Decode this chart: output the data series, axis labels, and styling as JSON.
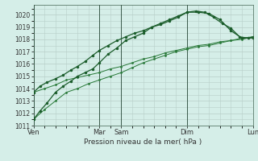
{
  "xlabel": "Pression niveau de la mer( hPa )",
  "ylim": [
    1011,
    1020.8
  ],
  "yticks": [
    1011,
    1012,
    1013,
    1014,
    1015,
    1016,
    1017,
    1018,
    1019,
    1020
  ],
  "bg_color": "#d5eee8",
  "plot_bg_color": "#d5eee8",
  "grid_color": "#b8cec8",
  "line_color_dark": "#1a5c2a",
  "line_color_med": "#2a7a3a",
  "xtick_labels": [
    "Ven",
    "Mar",
    "Sam",
    "Dim",
    "Lun"
  ],
  "xtick_positions": [
    0.0,
    3.0,
    4.0,
    7.0,
    10.0
  ],
  "vline_positions": [
    0.0,
    3.0,
    4.0,
    7.0,
    10.0
  ],
  "series1_x": [
    0.0,
    0.3,
    0.6,
    1.0,
    1.35,
    1.7,
    2.0,
    2.35,
    2.7,
    3.0,
    3.4,
    3.8,
    4.2,
    4.6,
    5.0,
    5.4,
    5.8,
    6.2,
    6.6,
    7.0,
    7.4,
    7.8,
    8.2,
    8.6,
    9.0,
    9.4,
    9.8,
    10.0
  ],
  "series1_y": [
    1011.5,
    1012.2,
    1012.8,
    1013.7,
    1014.2,
    1014.6,
    1015.0,
    1015.3,
    1015.6,
    1016.1,
    1016.8,
    1017.3,
    1017.9,
    1018.2,
    1018.5,
    1019.0,
    1019.3,
    1019.6,
    1019.9,
    1020.2,
    1020.3,
    1020.2,
    1019.8,
    1019.3,
    1018.9,
    1018.2,
    1018.1,
    1018.2
  ],
  "series2_x": [
    0.0,
    0.3,
    0.6,
    1.0,
    1.35,
    1.7,
    2.0,
    2.35,
    2.7,
    3.0,
    3.4,
    3.8,
    4.2,
    4.6,
    5.0,
    5.4,
    5.8,
    6.2,
    6.6,
    7.0,
    7.5,
    8.0,
    8.5,
    9.0,
    9.5,
    10.0
  ],
  "series2_y": [
    1013.7,
    1014.2,
    1014.5,
    1014.8,
    1015.1,
    1015.5,
    1015.8,
    1016.2,
    1016.7,
    1017.1,
    1017.5,
    1017.9,
    1018.2,
    1018.5,
    1018.7,
    1019.0,
    1019.2,
    1019.5,
    1019.8,
    1020.2,
    1020.2,
    1020.1,
    1019.6,
    1018.7,
    1018.1,
    1018.1
  ],
  "series3_x": [
    0.0,
    0.5,
    1.0,
    1.5,
    2.0,
    2.5,
    3.0,
    3.5,
    4.0,
    4.5,
    5.0,
    5.5,
    6.0,
    6.5,
    7.0,
    7.5,
    8.0,
    8.5,
    9.0,
    9.5,
    10.0
  ],
  "series3_y": [
    1011.5,
    1012.3,
    1013.0,
    1013.7,
    1014.0,
    1014.4,
    1014.7,
    1015.0,
    1015.3,
    1015.7,
    1016.1,
    1016.4,
    1016.7,
    1017.0,
    1017.2,
    1017.4,
    1017.5,
    1017.7,
    1017.9,
    1018.0,
    1018.2
  ],
  "series4_x": [
    0.0,
    0.5,
    1.0,
    1.5,
    2.0,
    2.5,
    3.0,
    3.5,
    4.0,
    4.5,
    5.0,
    5.5,
    6.0,
    6.5,
    7.0,
    7.5,
    8.0,
    8.5,
    9.0,
    9.5,
    10.0
  ],
  "series4_y": [
    1013.7,
    1014.0,
    1014.3,
    1014.7,
    1014.9,
    1015.1,
    1015.3,
    1015.6,
    1015.8,
    1016.1,
    1016.4,
    1016.6,
    1016.9,
    1017.1,
    1017.3,
    1017.5,
    1017.6,
    1017.8,
    1017.9,
    1018.1,
    1018.2
  ]
}
